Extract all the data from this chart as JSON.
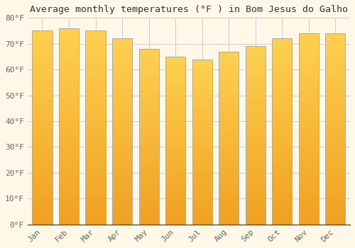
{
  "title": "Average monthly temperatures (°F ) in Bom Jesus do Galho",
  "months": [
    "Jan",
    "Feb",
    "Mar",
    "Apr",
    "May",
    "Jun",
    "Jul",
    "Aug",
    "Sep",
    "Oct",
    "Nov",
    "Dec"
  ],
  "values": [
    75,
    76,
    75,
    72,
    68,
    65,
    64,
    67,
    69,
    72,
    74,
    74
  ],
  "bar_color_bottom": "#F0A020",
  "bar_color_top": "#FFD050",
  "bar_edge_color": "#AAAAAA",
  "ylim": [
    0,
    80
  ],
  "yticks": [
    0,
    10,
    20,
    30,
    40,
    50,
    60,
    70,
    80
  ],
  "ytick_labels": [
    "0°F",
    "10°F",
    "20°F",
    "30°F",
    "40°F",
    "50°F",
    "60°F",
    "70°F",
    "80°F"
  ],
  "background_color": "#FFF8E8",
  "grid_color": "#CCCCCC",
  "title_fontsize": 9.5,
  "tick_fontsize": 8,
  "font_family": "monospace",
  "bar_width": 0.75
}
